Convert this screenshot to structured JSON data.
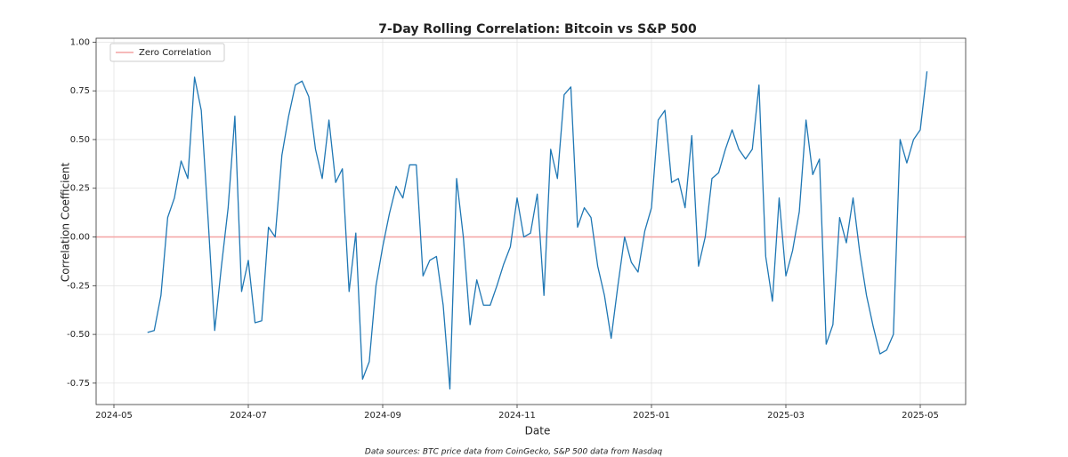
{
  "chart_data": {
    "type": "line",
    "title": "7-Day Rolling Correlation: Bitcoin vs S&P 500",
    "xlabel": "Date",
    "ylabel": "Correlation Coefficient",
    "footnote": "Data sources: BTC price data from CoinGecko, S&P 500 data from Nasdaq",
    "categories": [
      "2024-05",
      null,
      null,
      null,
      null,
      null,
      null,
      null,
      null,
      null,
      null,
      null,
      null,
      null,
      null,
      null,
      null,
      null,
      null,
      null,
      "2024-07",
      null,
      null,
      null,
      null,
      null,
      null,
      null,
      null,
      null,
      null,
      null,
      null,
      null,
      null,
      null,
      null,
      null,
      null,
      null,
      "2024-09",
      null,
      null,
      null,
      null,
      null,
      null,
      null,
      null,
      null,
      null,
      null,
      null,
      null,
      null,
      null,
      null,
      null,
      null,
      null,
      "2024-11",
      null,
      null,
      null,
      null,
      null,
      null,
      null,
      null,
      null,
      null,
      null,
      null,
      null,
      null,
      null,
      null,
      null,
      null,
      null,
      "2025-01",
      null,
      null,
      null,
      null,
      null,
      null,
      null,
      null,
      null,
      null,
      null,
      null,
      null,
      null,
      null,
      null,
      null,
      null,
      null,
      "2025-03",
      null,
      null,
      null,
      null,
      null,
      null,
      null,
      null,
      null,
      null,
      null,
      null,
      null,
      null,
      null,
      null,
      null,
      null,
      null,
      "2025-05",
      null
    ],
    "values": [
      null,
      null,
      null,
      null,
      null,
      -0.49,
      -0.48,
      -0.3,
      0.1,
      0.2,
      0.39,
      0.3,
      0.82,
      0.65,
      0.1,
      -0.48,
      -0.15,
      0.15,
      0.62,
      -0.28,
      -0.12,
      -0.44,
      -0.43,
      0.05,
      0.0,
      0.42,
      0.62,
      0.78,
      0.8,
      0.72,
      0.45,
      0.3,
      0.6,
      0.28,
      0.35,
      -0.28,
      0.02,
      -0.73,
      -0.64,
      -0.25,
      -0.05,
      0.12,
      0.26,
      0.2,
      0.37,
      0.37,
      -0.2,
      -0.12,
      -0.1,
      -0.35,
      -0.78,
      0.3,
      0.0,
      -0.45,
      -0.22,
      -0.35,
      -0.35,
      -0.25,
      -0.14,
      -0.05,
      0.2,
      0.0,
      0.02,
      0.22,
      -0.3,
      0.45,
      0.3,
      0.73,
      0.77,
      0.05,
      0.15,
      0.1,
      -0.15,
      -0.3,
      -0.52,
      -0.25,
      0.0,
      -0.13,
      -0.18,
      0.03,
      0.15,
      0.6,
      0.65,
      0.28,
      0.3,
      0.15,
      0.52,
      -0.15,
      0.0,
      0.3,
      0.33,
      0.45,
      0.55,
      0.45,
      0.4,
      0.45,
      0.78,
      -0.1,
      -0.33,
      0.2,
      -0.2,
      -0.07,
      0.13,
      0.6,
      0.32,
      0.4,
      -0.55,
      -0.45,
      0.1,
      -0.03,
      0.2,
      -0.08,
      -0.3,
      -0.46,
      -0.6,
      -0.58,
      -0.5,
      0.5,
      0.38,
      0.5,
      0.55,
      0.85
    ],
    "color": "#1f77b4",
    "reference_lines": [
      {
        "name": "Zero Correlation",
        "value": 0,
        "color": "#f4a3a3"
      }
    ],
    "ylim": [
      -0.86,
      1.02
    ],
    "yticks": [
      {
        "value": -0.75,
        "label": "-0.75"
      },
      {
        "value": -0.5,
        "label": "-0.50"
      },
      {
        "value": -0.25,
        "label": "-0.25"
      },
      {
        "value": 0,
        "label": "0.00"
      },
      {
        "value": 0.25,
        "label": "0.25"
      },
      {
        "value": 0.5,
        "label": "0.50"
      },
      {
        "value": 0.75,
        "label": "0.75"
      },
      {
        "value": 1,
        "label": "1.00"
      }
    ],
    "grid": true,
    "legend": "upper left"
  }
}
